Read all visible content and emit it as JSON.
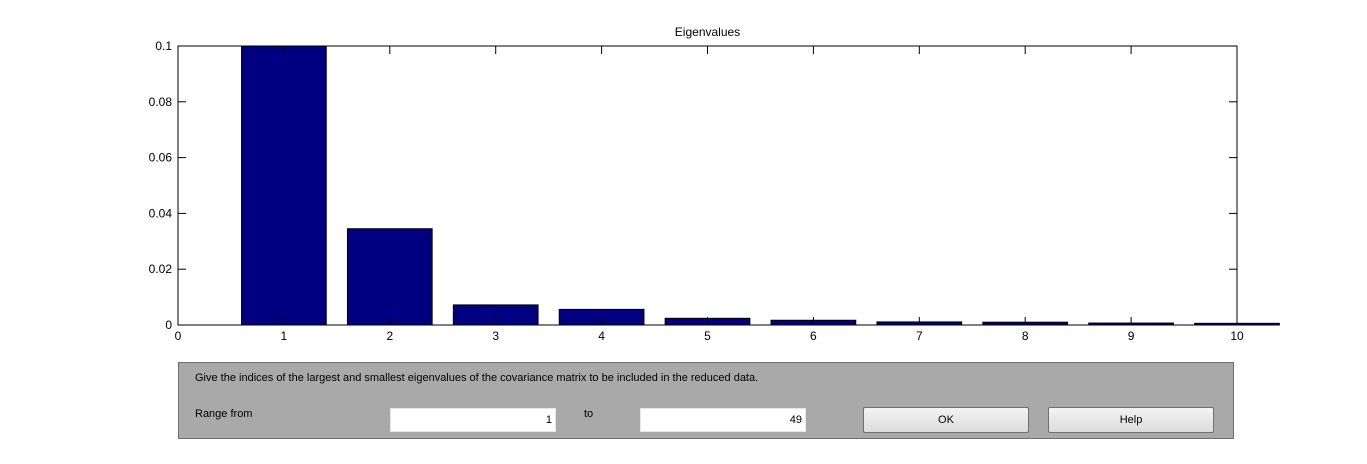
{
  "chart_data": {
    "type": "bar",
    "title": "Eigenvalues",
    "xlabel": "",
    "ylabel": "",
    "categories": [
      1,
      2,
      3,
      4,
      5,
      6,
      7,
      8,
      9,
      10
    ],
    "values": [
      0.1,
      0.0345,
      0.0072,
      0.0056,
      0.0024,
      0.0017,
      0.0011,
      0.001,
      0.0007,
      0.0006
    ],
    "xlim": [
      0,
      10
    ],
    "ylim": [
      0,
      0.1
    ],
    "xticks": [
      "0",
      "1",
      "2",
      "3",
      "4",
      "5",
      "6",
      "7",
      "8",
      "9",
      "10"
    ],
    "yticks": [
      "0",
      "0.02",
      "0.04",
      "0.06",
      "0.08",
      "0.1"
    ],
    "bar_color": "#000080",
    "grid": false,
    "legend": "none"
  },
  "dialog": {
    "instructions": "Give the indices of the largest and smallest eigenvalues of the covariance matrix to be included in the reduced data.",
    "range_from_label": "Range from",
    "range_from_value": "1",
    "to_label": "to",
    "range_to_value": "49",
    "ok_label": "OK",
    "help_label": "Help",
    "panel_color": "#a9a9a9"
  }
}
